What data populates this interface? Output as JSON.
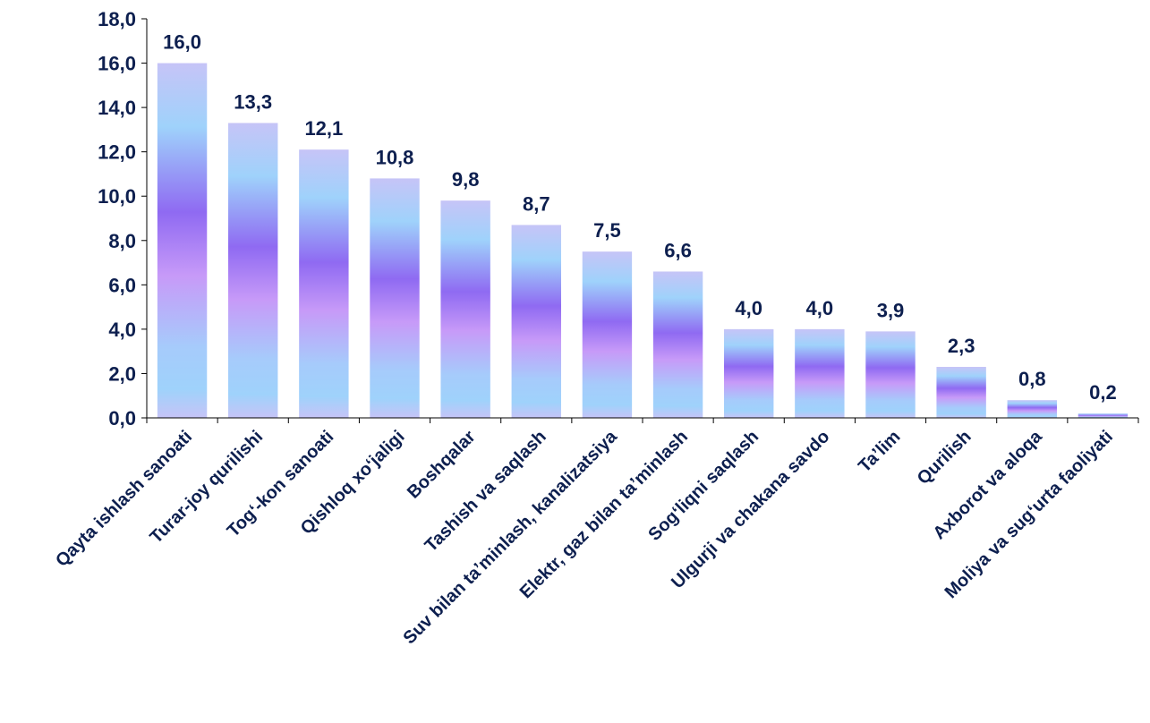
{
  "chart_data": {
    "type": "bar",
    "categories": [
      "Qayta ishlash sanoati",
      "Turar-joy qurilishi",
      "Tog‘-kon sanoati",
      "Qishloq xo‘jaligi",
      "Boshqalar",
      "Tashish va saqlash",
      "Suv bilan ta’minlash, kanalizatsiya",
      "Elektr, gaz bilan ta’minlash",
      "Sog‘liqni saqlash",
      "Ulgurji va chakana savdo",
      "Ta’lim",
      "Qurilish",
      "Axborot va aloqa",
      "Moliya va sug‘urta faoliyati"
    ],
    "values": [
      16.0,
      13.3,
      12.1,
      10.8,
      9.8,
      8.7,
      7.5,
      6.6,
      4.0,
      4.0,
      3.9,
      2.3,
      0.8,
      0.2
    ],
    "value_labels": [
      "16,0",
      "13,3",
      "12,1",
      "10,8",
      "9,8",
      "8,7",
      "7,5",
      "6,6",
      "4,0",
      "4,0",
      "3,9",
      "2,3",
      "0,8",
      "0,2"
    ],
    "yticks": [
      "0,0",
      "2,0",
      "4,0",
      "6,0",
      "8,0",
      "10,0",
      "12,0",
      "14,0",
      "16,0",
      "18,0"
    ],
    "ylim": [
      0,
      18
    ],
    "title": "",
    "xlabel": "",
    "ylabel": "",
    "grid": false,
    "legend": "none",
    "colors": {
      "bar_gradient": [
        "#c6c4f7",
        "#9fd2fb",
        "#8f6af2",
        "#c79af8",
        "#a6cbfb",
        "#9fd2fb",
        "#c6c4f7"
      ],
      "text": "#0d1f4f",
      "axis": "#000000"
    }
  }
}
